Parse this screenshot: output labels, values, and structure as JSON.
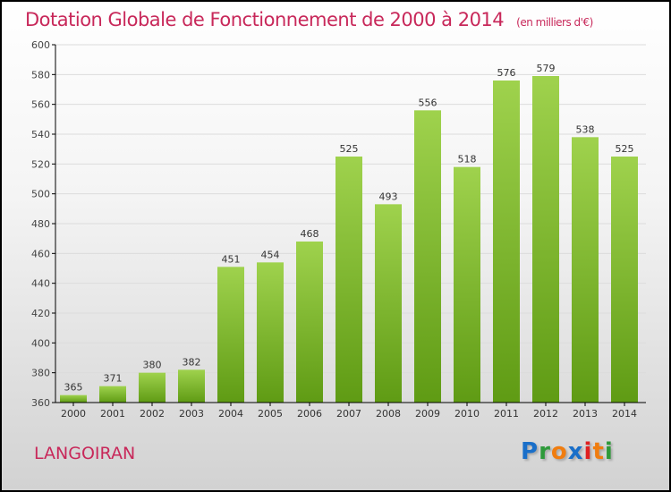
{
  "chart_data": {
    "type": "bar",
    "title": "Dotation Globale de Fonctionnement de 2000 à 2014",
    "subtitle": "(en milliers d'€)",
    "categories": [
      "2000",
      "2001",
      "2002",
      "2003",
      "2004",
      "2005",
      "2006",
      "2007",
      "2008",
      "2009",
      "2010",
      "2011",
      "2012",
      "2013",
      "2014"
    ],
    "values": [
      365,
      371,
      380,
      382,
      451,
      454,
      468,
      525,
      493,
      556,
      518,
      576,
      579,
      538,
      525
    ],
    "xlabel": "",
    "ylabel": "",
    "ylim": [
      360,
      600
    ],
    "yticks": [
      360,
      380,
      400,
      420,
      440,
      460,
      480,
      500,
      520,
      540,
      560,
      580,
      600
    ],
    "grid": true,
    "bar_color": "#7dbb2c"
  },
  "location": "LANGOIRAN",
  "logo": {
    "text": "Proxiti",
    "letters": [
      "P",
      "r",
      "o",
      "x",
      "i",
      "t",
      "i"
    ],
    "colors": [
      "#1a6fc9",
      "#2e9a3a",
      "#f07d10",
      "#1a6fc9",
      "#e02020",
      "#f07d10",
      "#2e9a3a"
    ]
  }
}
